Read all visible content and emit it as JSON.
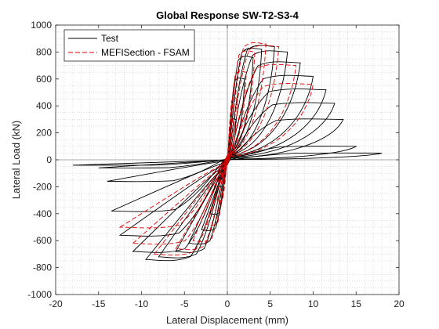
{
  "chart_data": {
    "type": "line",
    "title": "Global Response SW-T2-S3-4",
    "xlabel": "Lateral Displacement (mm)",
    "ylabel": "Lateral Load (kN)",
    "xlim": [
      -20,
      20
    ],
    "ylim": [
      -1000,
      1000
    ],
    "xticks": [
      -20,
      -15,
      -10,
      -5,
      0,
      5,
      10,
      15,
      20
    ],
    "yticks": [
      -1000,
      -800,
      -600,
      -400,
      -200,
      0,
      200,
      400,
      600,
      800,
      1000
    ],
    "grid": "minor-dotted",
    "legend_position": "top-left",
    "colors": {
      "test": "#000000",
      "model": "#e00000"
    },
    "series": [
      {
        "name": "Test",
        "style": "solid",
        "cycles": [
          {
            "pos": [
              1.0,
              300
            ],
            "neg": [
              -1.0,
              -200
            ]
          },
          {
            "pos": [
              2.0,
              600
            ],
            "neg": [
              -2.0,
              -400
            ]
          },
          {
            "pos": [
              3.0,
              760
            ],
            "neg": [
              -3.0,
              -520
            ]
          },
          {
            "pos": [
              4.0,
              820
            ],
            "neg": [
              -4.5,
              -620
            ]
          },
          {
            "pos": [
              5.5,
              840
            ],
            "neg": [
              -6.0,
              -680
            ]
          },
          {
            "pos": [
              7.0,
              800
            ],
            "neg": [
              -8.0,
              -720
            ]
          },
          {
            "pos": [
              8.5,
              720
            ],
            "neg": [
              -9.5,
              -740
            ]
          },
          {
            "pos": [
              10.0,
              620
            ],
            "neg": [
              -11.0,
              -680
            ]
          },
          {
            "pos": [
              11.5,
              520
            ],
            "neg": [
              -12.5,
              -560
            ]
          },
          {
            "pos": [
              12.5,
              420
            ],
            "neg": [
              -13.5,
              -380
            ]
          },
          {
            "pos": [
              13.5,
              300
            ],
            "neg": [
              -14.0,
              -160
            ]
          },
          {
            "pos": [
              15.0,
              100
            ],
            "neg": [
              -15.0,
              -60
            ]
          },
          {
            "pos": [
              18.0,
              50
            ],
            "neg": [
              -18.0,
              -40
            ]
          }
        ]
      },
      {
        "name": "MEFISection - FSAM",
        "style": "dashed",
        "cycles": [
          {
            "pos": [
              1.2,
              450
            ],
            "neg": [
              -1.2,
              -300
            ]
          },
          {
            "pos": [
              2.2,
              650
            ],
            "neg": [
              -2.5,
              -480
            ]
          },
          {
            "pos": [
              3.2,
              800
            ],
            "neg": [
              -4.0,
              -600
            ]
          },
          {
            "pos": [
              4.5,
              860
            ],
            "neg": [
              -6.0,
              -660
            ]
          },
          {
            "pos": [
              6.0,
              840
            ],
            "neg": [
              -8.5,
              -700
            ]
          },
          {
            "pos": [
              8.0,
              700
            ],
            "neg": [
              -11.0,
              -620
            ]
          },
          {
            "pos": [
              10.0,
              560
            ],
            "neg": [
              -12.5,
              -500
            ]
          }
        ]
      }
    ]
  }
}
